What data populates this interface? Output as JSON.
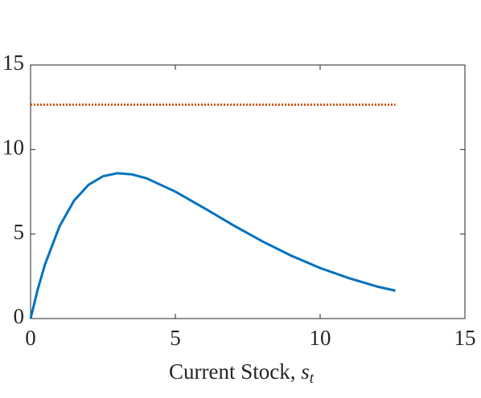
{
  "chart_data": {
    "type": "line",
    "xlabel": "Current Stock,",
    "xlabel_math": {
      "base": "s",
      "sub": "t"
    },
    "xlim": [
      0,
      15
    ],
    "xticks": [
      0,
      5,
      10,
      15
    ],
    "ylim": [
      0,
      15
    ],
    "yticks": [
      0,
      5,
      10,
      15
    ],
    "series": [
      {
        "color": "#0072BD",
        "style": "solid",
        "x": [
          0,
          0.25,
          0.5,
          1,
          1.5,
          2,
          2.5,
          3,
          3.5,
          4,
          5,
          6,
          7,
          8,
          9,
          10,
          11,
          12,
          12.6
        ],
        "values": [
          0,
          1.74,
          3.21,
          5.46,
          6.97,
          7.91,
          8.42,
          8.6,
          8.53,
          8.3,
          7.51,
          6.53,
          5.52,
          4.57,
          3.72,
          2.99,
          2.39,
          1.88,
          1.65
        ]
      },
      {
        "color": "#D95319",
        "style": "dotted",
        "x": [
          0,
          12.6
        ],
        "values": [
          12.65,
          12.65
        ]
      }
    ]
  }
}
